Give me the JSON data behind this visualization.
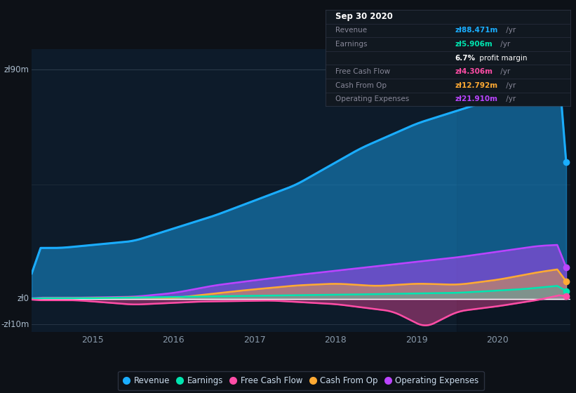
{
  "bg_color": "#0d1117",
  "plot_bg_color": "#0d1b2a",
  "title": "Sep 30 2020",
  "ylabel_top": "zł90m",
  "ylabel_zero": "zł0",
  "ylabel_bottom": "-zł10m",
  "x_ticks": [
    2015,
    2016,
    2017,
    2018,
    2019,
    2020
  ],
  "ylim": [
    -13,
    98
  ],
  "colors": {
    "revenue": "#1aadff",
    "earnings": "#00e5b0",
    "free_cash_flow": "#ff4da6",
    "cash_from_op": "#ffaa33",
    "operating_expenses": "#bb44ff"
  },
  "legend_items": [
    "Revenue",
    "Earnings",
    "Free Cash Flow",
    "Cash From Op",
    "Operating Expenses"
  ],
  "tooltip": {
    "date": "Sep 30 2020",
    "revenue_label": "Revenue",
    "revenue_val": "zł88.471m",
    "earnings_label": "Earnings",
    "earnings_val": "zł5.906m",
    "profit_margin": "6.7%",
    "fcf_label": "Free Cash Flow",
    "fcf_val": "zł4.306m",
    "cop_label": "Cash From Op",
    "cop_val": "zł12.792m",
    "opex_label": "Operating Expenses",
    "opex_val": "zł21.910m"
  }
}
